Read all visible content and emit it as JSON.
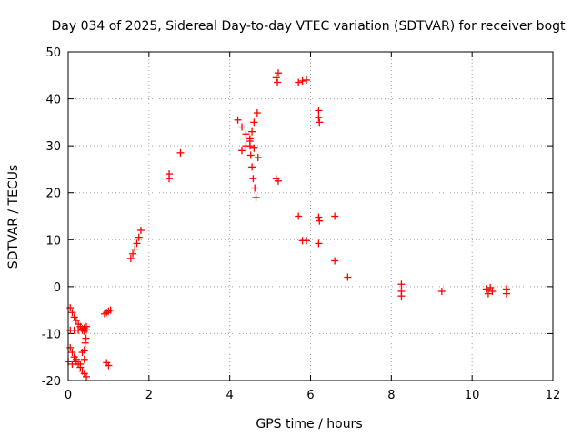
{
  "chart_data": {
    "type": "scatter",
    "title": "Day 034 of 2025, Sidereal Day-to-day VTEC variation (SDTVAR) for receiver bogt",
    "xlabel": "GPS time / hours",
    "ylabel": "SDTVAR / TECUs",
    "xlim": [
      0,
      12
    ],
    "ylim": [
      -20,
      50
    ],
    "xticks": [
      0,
      2,
      4,
      6,
      8,
      10,
      12
    ],
    "yticks": [
      -20,
      -10,
      0,
      10,
      20,
      30,
      40,
      50
    ],
    "grid": true,
    "marker": "+",
    "color": "#ff0000",
    "series": [
      {
        "name": "SDTVAR",
        "points": [
          [
            0.05,
            -4.5
          ],
          [
            0.1,
            -5.5
          ],
          [
            0.15,
            -6.5
          ],
          [
            0.2,
            -7.2
          ],
          [
            0.25,
            -8.0
          ],
          [
            0.3,
            -8.5
          ],
          [
            0.35,
            -9.0
          ],
          [
            0.4,
            -8.8
          ],
          [
            0.45,
            -8.5
          ],
          [
            0.05,
            -9.3
          ],
          [
            0.15,
            -9.3
          ],
          [
            0.25,
            -9.3
          ],
          [
            0.35,
            -9.3
          ],
          [
            0.45,
            -9.2
          ],
          [
            0.05,
            -13.0
          ],
          [
            0.1,
            -14.0
          ],
          [
            0.15,
            -15.0
          ],
          [
            0.2,
            -15.5
          ],
          [
            0.25,
            -16.5
          ],
          [
            0.3,
            -17.2
          ],
          [
            0.35,
            -18.0
          ],
          [
            0.4,
            -18.5
          ],
          [
            0.45,
            -19.2
          ],
          [
            0.0,
            -16.0
          ],
          [
            0.1,
            -16.5
          ],
          [
            0.2,
            -16.0
          ],
          [
            0.3,
            -16.5
          ],
          [
            0.4,
            -15.5
          ],
          [
            0.35,
            -14.0
          ],
          [
            0.4,
            -13.5
          ],
          [
            0.42,
            -12.0
          ],
          [
            0.44,
            -11.0
          ],
          [
            0.4,
            -9.5
          ],
          [
            0.9,
            -5.8
          ],
          [
            0.95,
            -5.5
          ],
          [
            1.0,
            -5.2
          ],
          [
            1.05,
            -5.0
          ],
          [
            0.95,
            -16.2
          ],
          [
            1.0,
            -16.8
          ],
          [
            1.55,
            6.0
          ],
          [
            1.6,
            7.0
          ],
          [
            1.65,
            8.0
          ],
          [
            1.7,
            9.2
          ],
          [
            1.75,
            10.5
          ],
          [
            1.8,
            12.0
          ],
          [
            2.5,
            23.0
          ],
          [
            2.5,
            24.0
          ],
          [
            2.78,
            28.5
          ],
          [
            4.2,
            35.5
          ],
          [
            4.3,
            34.0
          ],
          [
            4.4,
            32.5
          ],
          [
            4.5,
            31.0
          ],
          [
            4.6,
            29.5
          ],
          [
            4.7,
            27.5
          ],
          [
            4.3,
            29.0
          ],
          [
            4.4,
            30.0
          ],
          [
            4.5,
            31.5
          ],
          [
            4.55,
            33.0
          ],
          [
            4.6,
            35.0
          ],
          [
            4.68,
            37.0
          ],
          [
            4.5,
            30.0
          ],
          [
            4.52,
            28.0
          ],
          [
            4.55,
            25.5
          ],
          [
            4.58,
            23.0
          ],
          [
            4.62,
            21.0
          ],
          [
            4.65,
            19.0
          ],
          [
            5.15,
            44.5
          ],
          [
            5.18,
            43.5
          ],
          [
            5.2,
            45.5
          ],
          [
            5.15,
            23.0
          ],
          [
            5.2,
            22.5
          ],
          [
            5.7,
            43.5
          ],
          [
            5.8,
            43.8
          ],
          [
            5.9,
            44.0
          ],
          [
            5.7,
            15.0
          ],
          [
            5.8,
            9.8
          ],
          [
            5.9,
            9.8
          ],
          [
            6.2,
            37.5
          ],
          [
            6.2,
            36.0
          ],
          [
            6.22,
            35.0
          ],
          [
            6.2,
            14.8
          ],
          [
            6.22,
            14.0
          ],
          [
            6.2,
            9.2
          ],
          [
            6.6,
            15.0
          ],
          [
            6.6,
            5.5
          ],
          [
            6.92,
            2.0
          ],
          [
            8.25,
            0.5
          ],
          [
            8.25,
            -1.0
          ],
          [
            8.25,
            -2.0
          ],
          [
            9.25,
            -1.0
          ],
          [
            10.35,
            -0.5
          ],
          [
            10.4,
            -1.5
          ],
          [
            10.45,
            -0.2
          ],
          [
            10.5,
            -1.0
          ],
          [
            10.85,
            -0.5
          ],
          [
            10.85,
            -1.5
          ]
        ]
      }
    ]
  }
}
